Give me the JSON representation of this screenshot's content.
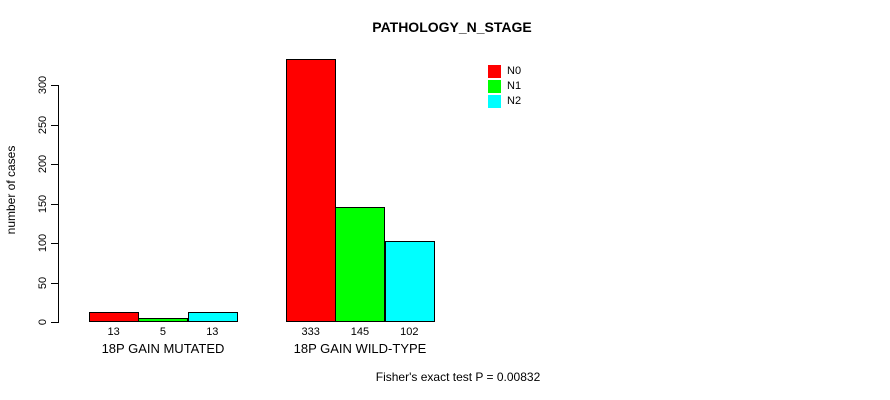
{
  "chart_data": {
    "type": "bar",
    "title": "PATHOLOGY_N_STAGE",
    "xlabel": "",
    "ylabel": "number of cases",
    "categories": [
      "18P GAIN MUTATED",
      "18P GAIN WILD-TYPE"
    ],
    "series": [
      {
        "name": "N0",
        "color": "#ff0000",
        "values": [
          13,
          333
        ]
      },
      {
        "name": "N1",
        "color": "#00ff00",
        "values": [
          5,
          145
        ]
      },
      {
        "name": "N2",
        "color": "#00ffff",
        "values": [
          13,
          102
        ]
      }
    ],
    "bar_value_labels": [
      [
        "13",
        "5",
        "13"
      ],
      [
        "333",
        "145",
        "102"
      ]
    ],
    "yticks": [
      0,
      50,
      100,
      150,
      200,
      250,
      300
    ],
    "ylim": [
      0,
      300
    ],
    "grid": false,
    "legend_position": "top-right",
    "bar_border_color": "#000000",
    "annotation": "Fisher's exact test P = 0.00832"
  }
}
